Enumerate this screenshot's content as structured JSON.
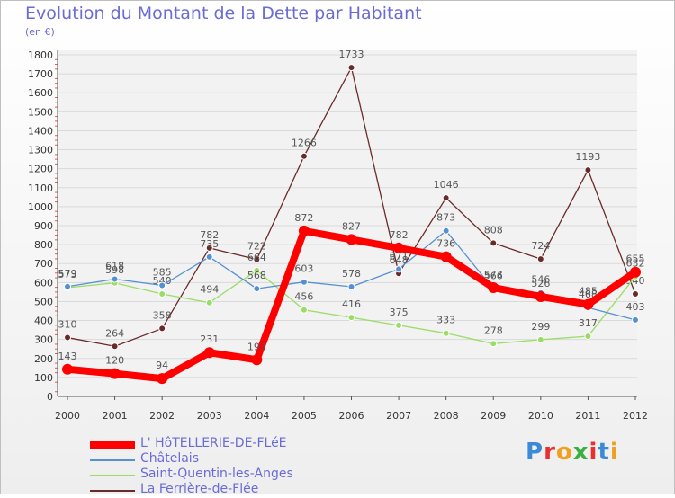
{
  "header": {
    "title": "Evolution du Montant de la Dette par Habitant",
    "unit": "(en €)"
  },
  "brand": {
    "letters": [
      "P",
      "r",
      "o",
      "x",
      "i",
      "t",
      "i"
    ],
    "colors": [
      "#3a8ad8",
      "#e83030",
      "#f0a020",
      "#3ab040",
      "#e83030",
      "#3a8ad8",
      "#f0a020"
    ]
  },
  "chart_data": {
    "type": "line",
    "title": "Evolution du Montant de la Dette par Habitant",
    "ylabel": "(en €)",
    "xlabel": "",
    "x": [
      "2000",
      "2001",
      "2002",
      "2003",
      "2004",
      "2005",
      "2006",
      "2007",
      "2008",
      "2009",
      "2010",
      "2011",
      "2012"
    ],
    "yticks": [
      "0",
      "100",
      "200",
      "300",
      "400",
      "500",
      "600",
      "700",
      "800",
      "900",
      "1000",
      "1100",
      "1200",
      "1300",
      "1400",
      "1500",
      "1600",
      "1700",
      "1800"
    ],
    "ylim": [
      0,
      1800
    ],
    "grid": true,
    "series": [
      {
        "name": "La Ferrière-de-Flée",
        "color": "#6b2a2a",
        "values": [
          310,
          264,
          358,
          782,
          722,
          1266,
          1733,
          648,
          1046,
          808,
          724,
          1193,
          540
        ],
        "labels": [
          "310",
          "264",
          "358",
          "782",
          "722",
          "1266",
          "1733",
          "648",
          "1046",
          "808",
          "724",
          "1193",
          "540"
        ]
      },
      {
        "name": "Saint-Quentin-les-Anges",
        "color": "#99dd66",
        "values": [
          573,
          598,
          540,
          494,
          664,
          456,
          416,
          375,
          333,
          278,
          299,
          317,
          632
        ],
        "labels": [
          "573",
          "598",
          "540",
          "494",
          "664",
          "456",
          "416",
          "375",
          "333",
          "278",
          "299",
          "317",
          "632"
        ]
      },
      {
        "name": "Châtelais",
        "color": "#5590d0",
        "values": [
          579,
          618,
          585,
          735,
          568,
          603,
          578,
          671,
          873,
          566,
          546,
          468,
          403
        ],
        "labels": [
          "579",
          "618",
          "585",
          "735",
          "568",
          "603",
          "578",
          "671",
          "873",
          "566",
          "546",
          "468",
          "403"
        ]
      },
      {
        "name": "L' HôTELLERIE-DE-FLéE",
        "color": "#ff0000",
        "values": [
          143,
          120,
          94,
          231,
          193,
          872,
          827,
          782,
          736,
          573,
          526,
          485,
          655
        ],
        "labels": [
          "143",
          "120",
          "94",
          "231",
          "193",
          "872",
          "827",
          "782",
          "736",
          "573",
          "526",
          "485",
          "655"
        ]
      }
    ],
    "legend": [
      "L' HôTELLERIE-DE-FLéE",
      "Châtelais",
      "Saint-Quentin-les-Anges",
      "La Ferrière-de-Flée"
    ],
    "legend_colors": [
      "#ff0000",
      "#5590d0",
      "#99dd66",
      "#6b2a2a"
    ],
    "legend_placement": "bottom-left"
  }
}
